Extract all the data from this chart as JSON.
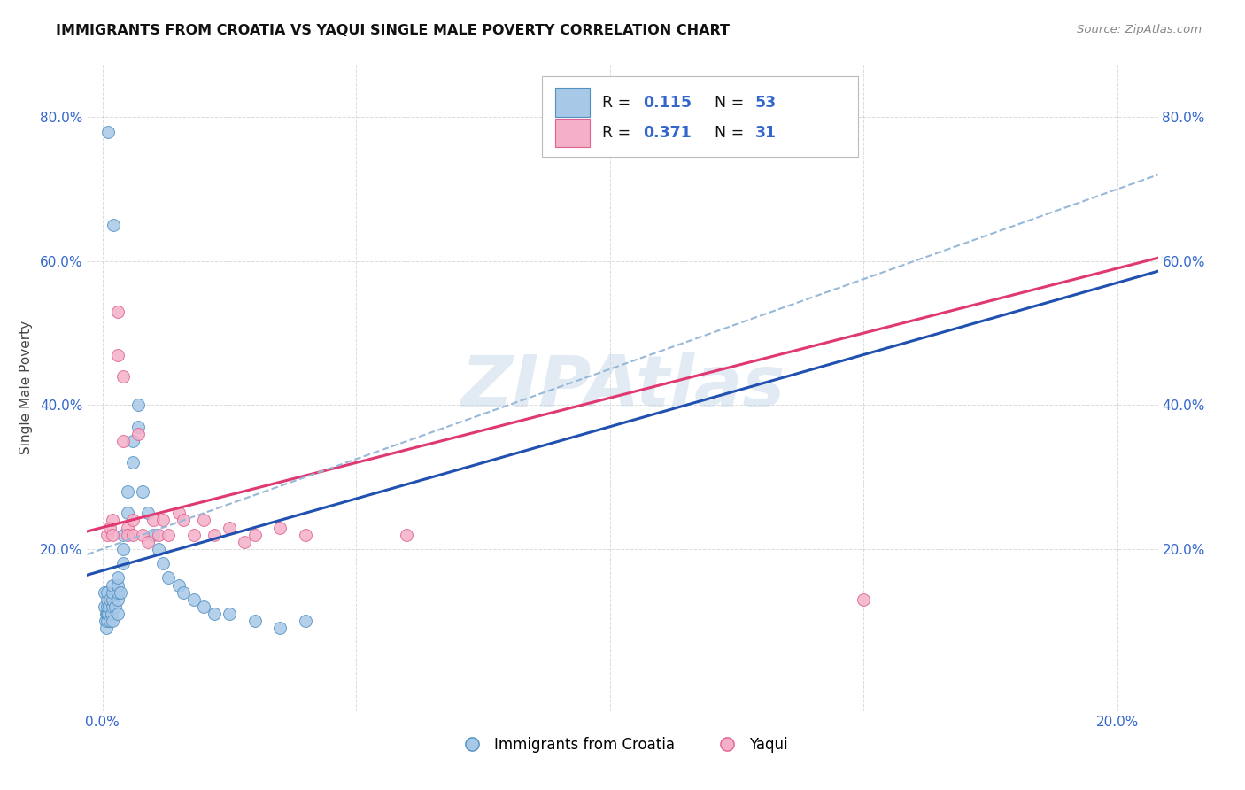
{
  "title": "IMMIGRANTS FROM CROATIA VS YAQUI SINGLE MALE POVERTY CORRELATION CHART",
  "source": "Source: ZipAtlas.com",
  "ylabel": "Single Male Poverty",
  "watermark": "ZIPAtlas",
  "croatia_color": "#a8c8e8",
  "croatia_edge": "#5090c0",
  "yaqui_color": "#f4b0c8",
  "yaqui_edge": "#e06090",
  "trendline_croatia_color": "#2050b0",
  "trendline_yaqui_color": "#e03870",
  "trendline_overall_color": "#98b8d8",
  "R_croatia": "0.115",
  "N_croatia": "53",
  "R_yaqui": "0.371",
  "N_yaqui": "31",
  "label_croatia": "Immigrants from Croatia",
  "label_yaqui": "Yaqui",
  "legend_text_color": "#3366cc",
  "xlim": [
    -0.003,
    0.208
  ],
  "ylim": [
    -0.025,
    0.875
  ],
  "xticks": [
    0.0,
    0.05,
    0.1,
    0.15,
    0.2
  ],
  "xtick_labels": [
    "0.0%",
    "",
    "",
    "",
    "20.0%"
  ],
  "yticks": [
    0.0,
    0.2,
    0.4,
    0.6,
    0.8
  ],
  "ytick_labels": [
    "",
    "20.0%",
    "40.0%",
    "60.0%",
    "80.0%"
  ],
  "croatia_x": [
    0.0005,
    0.0005,
    0.0006,
    0.0007,
    0.0008,
    0.0009,
    0.001,
    0.001,
    0.001,
    0.001,
    0.0012,
    0.0013,
    0.0015,
    0.0015,
    0.0018,
    0.002,
    0.002,
    0.002,
    0.002,
    0.002,
    0.0025,
    0.003,
    0.003,
    0.003,
    0.003,
    0.003,
    0.0035,
    0.004,
    0.004,
    0.004,
    0.005,
    0.005,
    0.006,
    0.006,
    0.007,
    0.007,
    0.008,
    0.009,
    0.01,
    0.011,
    0.012,
    0.013,
    0.015,
    0.016,
    0.018,
    0.02,
    0.022,
    0.025,
    0.03,
    0.035,
    0.0012,
    0.0022,
    0.04
  ],
  "croatia_y": [
    0.12,
    0.14,
    0.1,
    0.11,
    0.09,
    0.1,
    0.11,
    0.12,
    0.13,
    0.14,
    0.11,
    0.12,
    0.1,
    0.13,
    0.11,
    0.1,
    0.12,
    0.13,
    0.14,
    0.15,
    0.12,
    0.11,
    0.13,
    0.14,
    0.15,
    0.16,
    0.14,
    0.18,
    0.2,
    0.22,
    0.25,
    0.28,
    0.32,
    0.35,
    0.37,
    0.4,
    0.28,
    0.25,
    0.22,
    0.2,
    0.18,
    0.16,
    0.15,
    0.14,
    0.13,
    0.12,
    0.11,
    0.11,
    0.1,
    0.09,
    0.78,
    0.65,
    0.1
  ],
  "yaqui_x": [
    0.001,
    0.0015,
    0.002,
    0.002,
    0.003,
    0.003,
    0.004,
    0.004,
    0.005,
    0.005,
    0.006,
    0.006,
    0.007,
    0.008,
    0.009,
    0.01,
    0.011,
    0.012,
    0.013,
    0.015,
    0.016,
    0.018,
    0.02,
    0.022,
    0.025,
    0.028,
    0.03,
    0.035,
    0.04,
    0.06,
    0.15
  ],
  "yaqui_y": [
    0.22,
    0.23,
    0.22,
    0.24,
    0.47,
    0.53,
    0.44,
    0.35,
    0.23,
    0.22,
    0.24,
    0.22,
    0.36,
    0.22,
    0.21,
    0.24,
    0.22,
    0.24,
    0.22,
    0.25,
    0.24,
    0.22,
    0.24,
    0.22,
    0.23,
    0.21,
    0.22,
    0.23,
    0.22,
    0.22,
    0.13
  ]
}
